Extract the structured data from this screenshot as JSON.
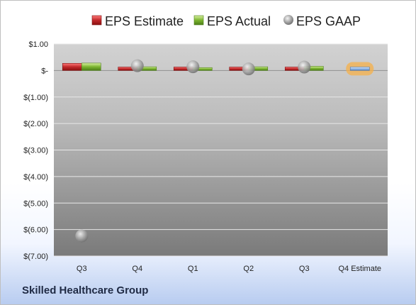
{
  "company_name": "Skilled Healthcare Group",
  "colors": {
    "estimate": "#c0282a",
    "actual": "#7cb530",
    "gaap": "#a6a6a6",
    "q4_estimate_fill": "#8fb4e3",
    "q4_estimate_glow": "#f5b04a"
  },
  "chart_data": {
    "type": "bar",
    "categories": [
      "Q3",
      "Q4",
      "Q1",
      "Q2",
      "Q3",
      "Q4 Estimate"
    ],
    "series": [
      {
        "name": "EPS Estimate",
        "values": [
          0.27,
          0.13,
          0.13,
          0.13,
          0.13,
          null
        ]
      },
      {
        "name": "EPS Actual",
        "values": [
          0.28,
          0.14,
          0.11,
          0.14,
          0.16,
          0.13
        ]
      },
      {
        "name": "EPS GAAP",
        "values": [
          -6.24,
          0.18,
          0.14,
          0.06,
          0.13,
          null
        ]
      }
    ],
    "legend": [
      "EPS Estimate",
      "EPS Actual",
      "EPS GAAP"
    ],
    "legend_position": "top",
    "ylim": [
      -7.0,
      1.0
    ],
    "yticks": [
      1.0,
      0.0,
      -1.0,
      -2.0,
      -3.0,
      -4.0,
      -5.0,
      -6.0,
      -7.0
    ],
    "ytick_labels": [
      "$1.00",
      "$-",
      "$(1.00)",
      "$(2.00)",
      "$(3.00)",
      "$(4.00)",
      "$(5.00)",
      "$(6.00)",
      "$(7.00)"
    ],
    "grid": true
  }
}
